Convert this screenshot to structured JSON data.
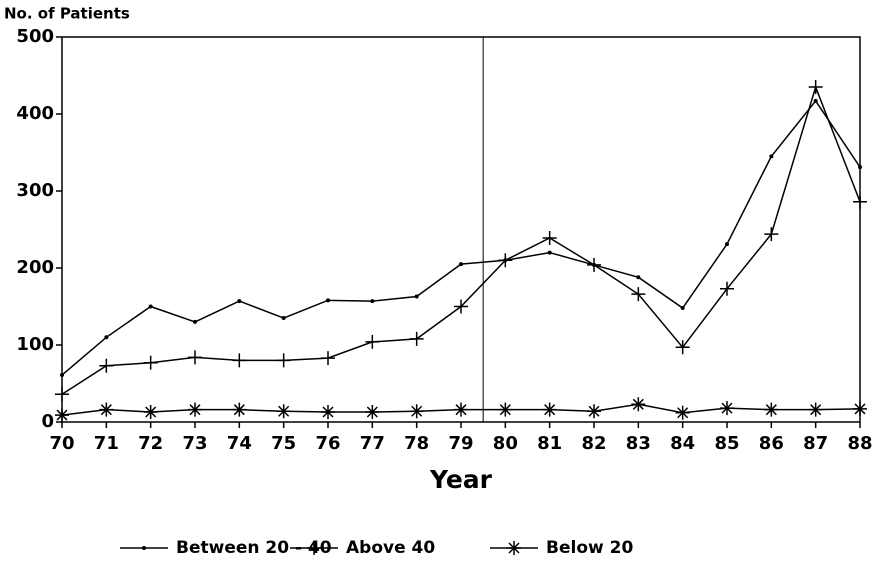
{
  "chart_data": {
    "type": "line",
    "ylabel": "No. of Patients",
    "xlabel": "Year",
    "x": [
      70,
      71,
      72,
      73,
      74,
      75,
      76,
      77,
      78,
      79,
      80,
      81,
      82,
      83,
      84,
      85,
      86,
      87,
      88
    ],
    "xlim": [
      70,
      88
    ],
    "xticks": [
      70,
      71,
      72,
      73,
      74,
      75,
      76,
      77,
      78,
      79,
      80,
      81,
      82,
      83,
      84,
      85,
      86,
      87,
      88
    ],
    "ylim": [
      0,
      500
    ],
    "yticks": [
      0,
      100,
      200,
      300,
      400,
      500
    ],
    "vline": 79.5,
    "legend": "bottom",
    "series": [
      {
        "name": "Between 20 - 40",
        "color": "#000000",
        "marker": "dot",
        "values": [
          61,
          110,
          150,
          130,
          157,
          135,
          158,
          157,
          163,
          205,
          210,
          220,
          204,
          188,
          148,
          231,
          345,
          417,
          331
        ]
      },
      {
        "name": "Above 40",
        "color": "#000000",
        "marker": "plus",
        "values": [
          36,
          73,
          77,
          84,
          80,
          80,
          83,
          104,
          108,
          150,
          210,
          239,
          204,
          166,
          97,
          173,
          244,
          435,
          286
        ]
      },
      {
        "name": "Below 20",
        "color": "#000000",
        "marker": "star",
        "values": [
          9,
          16,
          13,
          16,
          16,
          14,
          13,
          13,
          14,
          16,
          16,
          16,
          14,
          23,
          12,
          18,
          16,
          16,
          17
        ]
      }
    ]
  }
}
